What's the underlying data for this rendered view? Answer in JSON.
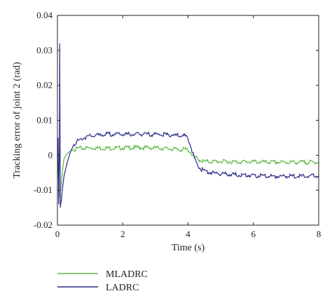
{
  "chart_data": {
    "type": "line",
    "title": "",
    "xlabel": "Time (s)",
    "ylabel": "Tracking error of joint 2 (rad)",
    "xlim": [
      0,
      8
    ],
    "ylim": [
      -0.02,
      0.04
    ],
    "xticks": [
      0,
      2,
      4,
      6,
      8
    ],
    "xtick_labels": [
      "0",
      "2",
      "4",
      "6",
      "8"
    ],
    "yticks": [
      -0.02,
      -0.01,
      0,
      0.01,
      0.02,
      0.03,
      0.04
    ],
    "ytick_labels": [
      "-0.02",
      "-0.01",
      "0",
      "0.01",
      "0.02",
      "0.03",
      "0.04"
    ],
    "grid": false,
    "legend_position": "bottom-left, below the plot",
    "series": [
      {
        "name": "MLADRC",
        "color": "#5db846",
        "x": [
          0,
          0.02,
          0.05,
          0.08,
          0.12,
          0.16,
          0.2,
          0.3,
          0.4,
          0.5,
          0.6,
          0.7,
          0.8,
          1.0,
          1.5,
          2.0,
          2.5,
          3.0,
          3.5,
          3.8,
          3.9,
          4.0,
          4.05,
          4.1,
          4.2,
          4.3,
          4.4,
          4.5,
          5.0,
          5.5,
          6.0,
          6.5,
          7.0,
          7.5,
          8.0
        ],
        "y": [
          0,
          -0.004,
          -0.011,
          -0.012,
          -0.008,
          -0.004,
          -0.001,
          0.0005,
          0.0012,
          0.0016,
          0.0019,
          0.002,
          0.002,
          0.0021,
          0.002,
          0.0021,
          0.0022,
          0.0021,
          0.0018,
          0.0016,
          0.0017,
          0.0015,
          0.0012,
          0.0005,
          -0.0005,
          -0.0012,
          -0.0015,
          -0.0018,
          -0.0018,
          -0.0019,
          -0.0019,
          -0.002,
          -0.002,
          -0.002,
          -0.002
        ]
      },
      {
        "name": "LADRC",
        "color": "#2c2c8c",
        "x": [
          0,
          0.02,
          0.04,
          0.06,
          0.07,
          0.08,
          0.09,
          0.1,
          0.12,
          0.15,
          0.2,
          0.3,
          0.4,
          0.5,
          0.6,
          0.7,
          0.8,
          1.0,
          1.5,
          2.0,
          2.5,
          3.0,
          3.5,
          3.9,
          4.0,
          4.1,
          4.2,
          4.3,
          4.4,
          4.5,
          4.7,
          5.0,
          5.5,
          6.0,
          6.5,
          7.0,
          7.5,
          8.0
        ],
        "y": [
          0,
          0.005,
          -0.014,
          0.002,
          0.032,
          0.005,
          -0.015,
          -0.014,
          -0.013,
          -0.01,
          -0.006,
          -0.002,
          0.001,
          0.003,
          0.004,
          0.0045,
          0.005,
          0.0055,
          0.006,
          0.006,
          0.006,
          0.006,
          0.0058,
          0.0055,
          0.005,
          0.002,
          -0.001,
          -0.003,
          -0.004,
          -0.0045,
          -0.005,
          -0.0053,
          -0.0056,
          -0.0058,
          -0.006,
          -0.006,
          -0.006,
          -0.0058
        ]
      }
    ]
  }
}
